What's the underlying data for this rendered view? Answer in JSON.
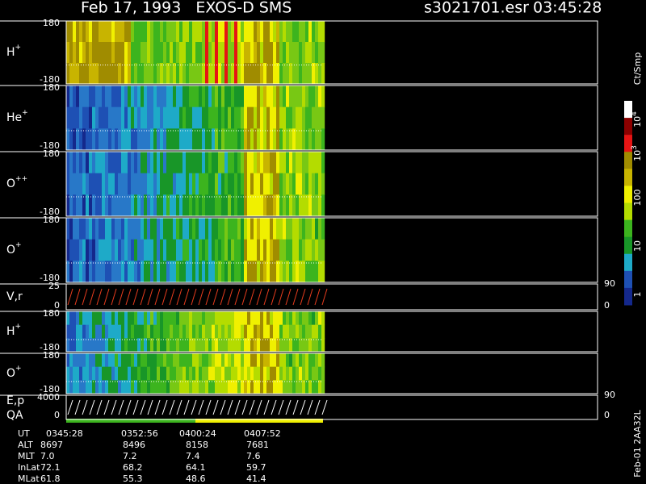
{
  "header": {
    "title": "Feb 17, 1993   EXOS-D SMS",
    "file": "s3021701.esr",
    "time": "03:45:28"
  },
  "panels": [
    {
      "label": "H",
      "charge": "+",
      "top": "180",
      "bottom": "-180"
    },
    {
      "label": "He",
      "charge": "+",
      "top": "180",
      "bottom": "-180"
    },
    {
      "label": "O",
      "charge": "++",
      "top": "180",
      "bottom": "-180"
    },
    {
      "label": "O",
      "charge": "+",
      "top": "180",
      "bottom": "-180"
    },
    {
      "label": "V,r",
      "top": "25",
      "bottom": "0",
      "right_top": "90",
      "right_bottom": "0"
    },
    {
      "label": "H",
      "charge": "+",
      "top": "180",
      "bottom": "-180"
    },
    {
      "label": "O",
      "charge": "+",
      "top": "180",
      "bottom": "-180"
    },
    {
      "label": "E,p",
      "label2": "QA",
      "top": "4000",
      "bottom": "0",
      "right_top": "90",
      "right_bottom": "0"
    }
  ],
  "colorbar": {
    "unit": "Ct/Smp",
    "labels": [
      {
        "base": "10",
        "exp": "4"
      },
      {
        "base": "10",
        "exp": "3"
      },
      {
        "base": "100"
      },
      {
        "base": "10"
      },
      {
        "base": "1"
      }
    ]
  },
  "footer": {
    "rows": [
      {
        "label": "UT",
        "values": [
          "0345:28",
          "0352:56",
          "0400:24",
          "0407:52"
        ]
      },
      {
        "label": "ALT",
        "values": [
          "8697",
          "8496",
          "8158",
          "7681"
        ]
      },
      {
        "label": "MLT",
        "values": [
          "7.0",
          "7.2",
          "7.4",
          "7.6"
        ]
      },
      {
        "label": "InLat",
        "values": [
          "72.1",
          "68.2",
          "64.1",
          "59.7"
        ]
      },
      {
        "label": "MLat",
        "values": [
          "61.8",
          "55.3",
          "48.6",
          "41.4"
        ]
      }
    ],
    "id": "Feb-01 2AA32L"
  }
}
